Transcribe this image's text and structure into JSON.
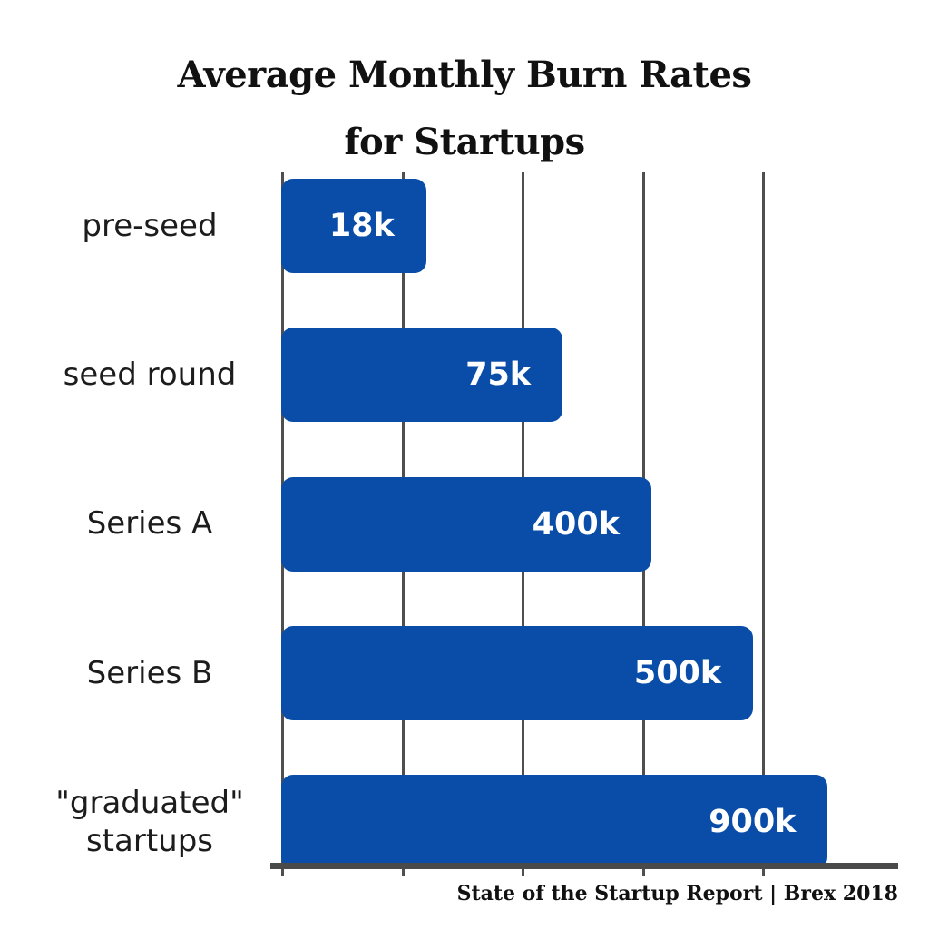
{
  "title": {
    "line1": "Average Monthly Burn Rates",
    "line2": "for Startups"
  },
  "source": "State of the Startup Report | Brex 2018",
  "chart_data": {
    "type": "bar",
    "orientation": "horizontal",
    "title": "Average Monthly Burn Rates for Startups",
    "categories": [
      "pre-seed",
      "seed round",
      "Series A",
      "Series B",
      "\"graduated\" startups"
    ],
    "values": [
      18000,
      75000,
      400000,
      500000,
      900000
    ],
    "value_labels": [
      "18k",
      "75k",
      "400k",
      "500k",
      "900k"
    ],
    "value_label_position": "inside-right",
    "bar_color": "#0a4da8",
    "value_label_color": "#ffffff",
    "gridline_color": "#4f4f4f",
    "grid": true,
    "legend": false,
    "xlabel": "",
    "ylabel": "",
    "layout_hints": {
      "bar_width_pct": [
        23.5,
        45.6,
        60.0,
        76.5,
        88.6
      ],
      "gridline_pct": [
        0,
        19.5,
        39,
        58.5,
        78
      ]
    }
  }
}
